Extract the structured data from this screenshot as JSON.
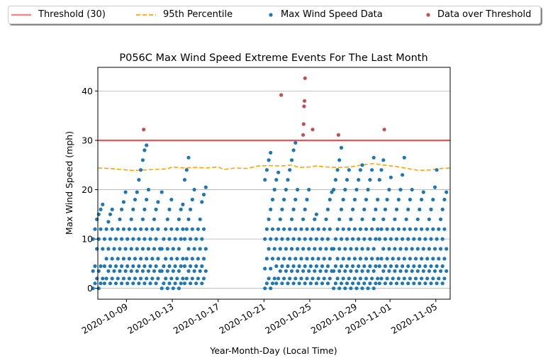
{
  "chart_data": {
    "type": "scatter",
    "title": "P056C Max Wind Speed Extreme Events For The Last Month",
    "xlabel": "Year-Month-Day (Local Time)",
    "ylabel": "Max Wind Speed (mph)",
    "xlim": [
      "2020-10-06T12:00",
      "2020-11-06T06:00"
    ],
    "ylim": [
      -2.2,
      44.8
    ],
    "yticks": [
      0,
      10,
      20,
      30,
      40
    ],
    "xticks": [
      "2020-10-09",
      "2020-10-13",
      "2020-10-17",
      "2020-10-21",
      "2020-10-25",
      "2020-10-29",
      "2020-11-01",
      "2020-11-05"
    ],
    "grid": "y",
    "legend": {
      "position": "top",
      "entries": [
        "Threshold (30)",
        "95th Percentile",
        "Max Wind Speed Data",
        "Data over Threshold"
      ]
    },
    "threshold": {
      "name": "Threshold (30)",
      "value": 30,
      "color": "#e8555a"
    },
    "percentile95": {
      "name": "95th Percentile",
      "color": "#ffa500",
      "points": [
        [
          "2020-10-06T12:00",
          24.4
        ],
        [
          "2020-10-07T12:00",
          24.3
        ],
        [
          "2020-10-08T12:00",
          24.1
        ],
        [
          "2020-10-09T12:00",
          23.9
        ],
        [
          "2020-10-10T12:00",
          24.0
        ],
        [
          "2020-10-11T12:00",
          24.1
        ],
        [
          "2020-10-12T12:00",
          24.2
        ],
        [
          "2020-10-13T00:00",
          24.6
        ],
        [
          "2020-10-14T00:00",
          24.4
        ],
        [
          "2020-10-15T00:00",
          24.5
        ],
        [
          "2020-10-16T00:00",
          24.4
        ],
        [
          "2020-10-17T00:00",
          24.6
        ],
        [
          "2020-10-17T12:00",
          24.1
        ],
        [
          "2020-10-18T12:00",
          24.4
        ],
        [
          "2020-10-19T12:00",
          24.3
        ],
        [
          "2020-10-20T12:00",
          24.8
        ],
        [
          "2020-10-21T12:00",
          24.9
        ],
        [
          "2020-10-22T12:00",
          24.8
        ],
        [
          "2020-10-23T12:00",
          25.0
        ],
        [
          "2020-10-24T00:00",
          24.5
        ],
        [
          "2020-10-25T00:00",
          24.6
        ],
        [
          "2020-10-25T12:00",
          24.8
        ],
        [
          "2020-10-26T12:00",
          24.6
        ],
        [
          "2020-10-27T12:00",
          24.5
        ],
        [
          "2020-10-28T12:00",
          24.6
        ],
        [
          "2020-10-29T12:00",
          25.0
        ],
        [
          "2020-10-30T12:00",
          25.3
        ],
        [
          "2020-10-31T12:00",
          25.0
        ],
        [
          "2020-11-01T12:00",
          24.7
        ],
        [
          "2020-11-02T12:00",
          24.3
        ],
        [
          "2020-11-03T12:00",
          23.9
        ],
        [
          "2020-11-04T12:00",
          24.0
        ],
        [
          "2020-11-05T12:00",
          24.3
        ],
        [
          "2020-11-06T06:00",
          24.4
        ]
      ]
    },
    "series": [
      {
        "name": "Max Wind Speed Data",
        "color": "#1f77b4",
        "days": [
          {
            "date": "2020-10-06",
            "values": [
              0,
              1,
              2,
              3.5,
              4.5,
              8,
              10,
              12,
              14,
              15,
              16,
              17
            ]
          },
          {
            "date": "2020-10-07",
            "values": [
              1,
              2,
              3.5,
              4.5,
              6,
              8,
              10,
              12,
              13.5,
              15,
              16
            ]
          },
          {
            "date": "2020-10-08",
            "values": [
              1,
              2,
              3.5,
              4.5,
              6,
              8,
              10,
              12,
              14,
              16,
              17.5,
              19.5
            ]
          },
          {
            "date": "2020-10-09",
            "values": [
              1,
              2,
              3.5,
              4.5,
              6,
              8,
              10,
              12,
              14,
              16,
              18,
              19.5
            ]
          },
          {
            "date": "2020-10-10",
            "values": [
              1,
              2,
              3.5,
              4.5,
              6,
              8,
              10,
              12,
              14,
              16,
              18,
              20,
              22,
              24,
              26,
              28,
              29
            ]
          },
          {
            "date": "2020-10-11",
            "values": [
              1,
              2,
              3.5,
              4.5,
              6,
              8,
              10,
              12,
              14,
              16,
              17.5
            ]
          },
          {
            "date": "2020-10-12",
            "values": [
              0,
              1,
              2,
              3.5,
              4.5,
              6,
              8,
              10,
              12,
              14,
              16,
              18,
              19.5
            ]
          },
          {
            "date": "2020-10-13",
            "values": [
              0,
              1,
              2,
              3.5,
              4.5,
              6,
              8,
              10,
              12,
              14,
              16,
              17
            ]
          },
          {
            "date": "2020-10-14",
            "values": [
              1,
              2,
              3.5,
              4.5,
              6,
              8,
              10,
              12,
              14,
              16,
              18,
              20,
              22,
              24,
              26.5
            ]
          },
          {
            "date": "2020-10-15",
            "values": [
              1,
              2,
              3.5,
              4.5,
              6,
              8,
              10,
              12,
              14,
              17.5,
              19,
              20.5
            ]
          },
          {
            "date": "2020-10-21",
            "values": [
              0,
              1,
              2,
              4,
              6,
              8,
              10,
              12,
              14,
              16,
              18,
              20,
              22,
              24,
              26,
              27.5
            ]
          },
          {
            "date": "2020-10-22",
            "values": [
              1,
              2,
              3.5,
              4.5,
              6,
              8,
              10,
              12,
              14,
              16,
              18,
              20,
              22,
              23.5
            ]
          },
          {
            "date": "2020-10-23",
            "values": [
              1,
              2,
              3.5,
              4.5,
              6,
              8,
              10,
              12,
              14,
              16,
              18,
              20,
              22,
              24,
              26,
              28,
              29.5
            ]
          },
          {
            "date": "2020-10-24",
            "values": [
              1,
              2,
              3.5,
              4.5,
              6,
              8,
              10,
              12,
              14,
              16,
              18,
              20
            ]
          },
          {
            "date": "2020-10-25",
            "values": [
              1,
              2,
              3.5,
              4.5,
              6,
              8,
              10,
              12,
              14,
              15
            ]
          },
          {
            "date": "2020-10-26",
            "values": [
              1,
              2,
              3.5,
              4.5,
              6,
              8,
              10,
              12,
              14,
              16,
              18,
              19.5
            ]
          },
          {
            "date": "2020-10-27",
            "values": [
              0,
              1,
              2,
              3.5,
              4.5,
              6,
              8,
              10,
              12,
              14,
              16,
              18,
              20,
              22,
              24,
              26,
              28.5
            ]
          },
          {
            "date": "2020-10-28",
            "values": [
              0,
              1,
              2,
              3.5,
              4.5,
              6,
              8,
              10,
              12,
              14,
              16,
              18,
              20,
              22,
              24
            ]
          },
          {
            "date": "2020-10-29",
            "values": [
              0,
              1,
              2,
              3.5,
              4.5,
              6,
              8,
              10,
              12,
              14,
              16,
              18,
              20,
              22,
              24,
              25
            ]
          },
          {
            "date": "2020-10-30",
            "values": [
              0,
              1,
              2,
              3.5,
              4.5,
              6,
              8,
              10,
              12,
              14,
              16,
              18,
              20,
              22,
              24,
              26.5
            ]
          },
          {
            "date": "2020-10-31",
            "values": [
              1,
              2,
              3.5,
              4.5,
              6,
              8,
              10,
              12,
              14,
              16,
              18,
              20,
              22,
              24,
              26
            ]
          },
          {
            "date": "2020-11-01",
            "values": [
              1,
              2,
              3.5,
              4.5,
              6,
              8,
              10,
              12,
              14,
              16,
              18,
              20,
              22.5
            ]
          },
          {
            "date": "2020-11-02",
            "values": [
              1,
              2,
              3.5,
              4.5,
              6,
              8,
              10,
              12,
              14,
              16,
              18,
              20,
              23,
              26.5
            ]
          },
          {
            "date": "2020-11-03",
            "values": [
              1,
              2,
              3.5,
              4.5,
              6,
              8,
              10,
              12,
              14,
              16,
              18,
              19.5
            ]
          },
          {
            "date": "2020-11-04",
            "values": [
              1,
              2,
              3.5,
              4.5,
              6,
              8,
              10,
              12,
              14,
              16,
              18,
              20.5
            ]
          },
          {
            "date": "2020-11-05",
            "values": [
              1,
              2,
              3.5,
              4.5,
              6,
              8,
              10,
              12,
              14,
              16,
              18,
              19.5,
              24
            ]
          }
        ]
      },
      {
        "name": "Data over Threshold",
        "color": "#c44e52",
        "points": [
          [
            "2020-10-10T12:00",
            32.2
          ],
          [
            "2020-10-22T12:00",
            39.2
          ],
          [
            "2020-10-24T10:00",
            31.1
          ],
          [
            "2020-10-24T11:00",
            33.3
          ],
          [
            "2020-10-24T12:00",
            36.9
          ],
          [
            "2020-10-24T13:00",
            38.0
          ],
          [
            "2020-10-24T14:00",
            42.6
          ],
          [
            "2020-10-25T06:00",
            32.2
          ],
          [
            "2020-10-27T12:00",
            31.1
          ],
          [
            "2020-10-31T12:00",
            32.2
          ]
        ]
      }
    ]
  }
}
